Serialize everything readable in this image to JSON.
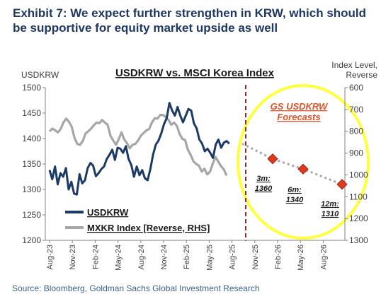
{
  "exhibit_title": "Exhibit 7: We expect further strengthen in KRW, which should be supportive for equity market upside as well",
  "source": "Source: Bloomberg, Goldman Sachs Global Investment Research",
  "chart_data": {
    "type": "line",
    "title": "USDKRW vs. MSCI Korea Index",
    "left_axis_label": "USDKRW",
    "right_axis_label_line1": "Index Level,",
    "right_axis_label_line2": "Reverse",
    "left_ylim": [
      1200,
      1500
    ],
    "left_ticks": [
      "1200",
      "1250",
      "1300",
      "1350",
      "1400",
      "1450",
      "1500"
    ],
    "right_ylim": [
      600,
      1300
    ],
    "right_ticks": [
      "600",
      "700",
      "800",
      "900",
      "1000",
      "1100",
      "1200",
      "1300"
    ],
    "right_axis_reversed": true,
    "x_ticks": [
      "Aug-23",
      "Nov-23",
      "Feb-24",
      "May-24",
      "Aug-24",
      "Nov-24",
      "Feb-25",
      "May-25",
      "Aug-25",
      "Nov-25",
      "Feb-26",
      "May-26",
      "Aug-26"
    ],
    "legend": [
      {
        "name": "USDKRW",
        "color": "#1b3a66"
      },
      {
        "name": "MXKR Index [Reverse, RHS]",
        "color": "#a6a6a6"
      }
    ],
    "series": [
      {
        "name": "USDKRW",
        "axis": "left",
        "color": "#1b3a66",
        "values": [
          1338,
          1320,
          1345,
          1310,
          1332,
          1325,
          1342,
          1300,
          1315,
          1292,
          1290,
          1330,
          1312,
          1318,
          1342,
          1352,
          1347,
          1326,
          1332,
          1340,
          1345,
          1360,
          1368,
          1378,
          1358,
          1382,
          1380,
          1372,
          1385,
          1360,
          1348,
          1325,
          1345,
          1328,
          1338,
          1322,
          1318,
          1340,
          1368,
          1388,
          1396,
          1410,
          1428,
          1440,
          1470,
          1455,
          1445,
          1462,
          1445,
          1432,
          1445,
          1458,
          1455,
          1430,
          1420,
          1398,
          1390,
          1375,
          1380,
          1372,
          1362,
          1388,
          1398,
          1382,
          1392,
          1395,
          1390
        ]
      },
      {
        "name": "MXKR Index [Reverse, RHS]",
        "axis": "right",
        "color": "#a6a6a6",
        "values": [
          800,
          788,
          795,
          805,
          790,
          760,
          742,
          756,
          780,
          830,
          858,
          862,
          845,
          810,
          800,
          788,
          772,
          760,
          763,
          748,
          760,
          770,
          820,
          842,
          862,
          836,
          805,
          838,
          855,
          878,
          862,
          858,
          842,
          820,
          808,
          796,
          790,
          760,
          740,
          742,
          725,
          725,
          735,
          748,
          770,
          760,
          775,
          812,
          835,
          840,
          885,
          908,
          938,
          950,
          958,
          985,
          972,
          998,
          985,
          948,
          918,
          940,
          960,
          975,
          1003
        ]
      },
      {
        "name": "GS USDKRW Forecasts",
        "axis": "left",
        "color": "#a6a6a6",
        "points": [
          {
            "x": "Sep-25",
            "value": 1390
          },
          {
            "x": "3m",
            "value": 1360,
            "label_line1": "3m:",
            "label_line2": "1360"
          },
          {
            "x": "6m",
            "value": 1340,
            "label_line1": "6m:",
            "label_line2": "1340"
          },
          {
            "x": "12m",
            "value": 1310,
            "label_line1": "12m:",
            "label_line2": "1310"
          }
        ]
      }
    ],
    "forecast_callout_line1": "GS USDKRW",
    "forecast_callout_line2": "Forecasts",
    "forecast_marker_color": "#e03a1e",
    "callout_circle_color": "#ffff3c",
    "divider_color": "#8b2e2e"
  }
}
